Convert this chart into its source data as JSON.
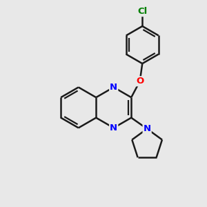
{
  "bg_color": "#e8e8e8",
  "bond_color": "#1a1a1a",
  "N_color": "#0000ff",
  "O_color": "#ff0000",
  "Cl_color": "#008000",
  "bond_width": 1.8,
  "figsize": [
    3.0,
    3.0
  ],
  "dpi": 100,
  "xlim": [
    0,
    10
  ],
  "ylim": [
    0,
    10
  ]
}
